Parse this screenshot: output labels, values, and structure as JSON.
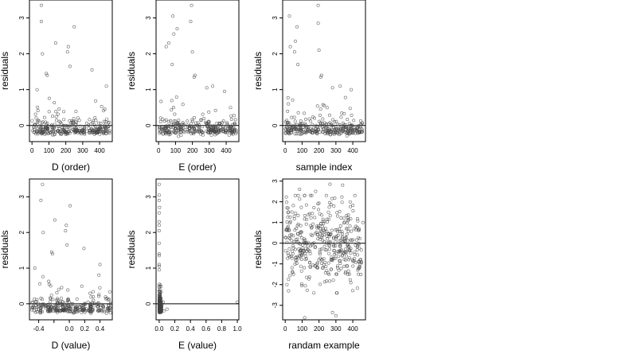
{
  "chart_data": [
    {
      "type": "scatter",
      "xlabel": "D (order)",
      "ylabel": "residuals",
      "xlim": [
        -15,
        475
      ],
      "ylim": [
        -0.45,
        3.5
      ],
      "xticks": [
        0,
        100,
        200,
        300,
        400
      ],
      "xtick_labels": [
        "0",
        "100",
        "200",
        "300",
        "400"
      ],
      "yticks": [
        0,
        1,
        2,
        3
      ],
      "ytick_labels": [
        "0",
        "1",
        "2",
        "3"
      ],
      "hline": 0,
      "highlight_points": [
        [
          55,
          3.35
        ],
        [
          55,
          2.9
        ],
        [
          140,
          2.3
        ],
        [
          250,
          2.75
        ],
        [
          215,
          2.2
        ],
        [
          210,
          2.05
        ],
        [
          62,
          2.0
        ],
        [
          225,
          1.65
        ],
        [
          85,
          1.45
        ],
        [
          90,
          1.4
        ],
        [
          355,
          1.55
        ],
        [
          440,
          1.1
        ],
        [
          30,
          1.0
        ]
      ],
      "residual_cloud": {
        "n": 300,
        "x_range": [
          0,
          460
        ],
        "center": -0.05,
        "spread": 0.28
      }
    },
    {
      "type": "scatter",
      "xlabel": "E (order)",
      "ylabel": "residuals",
      "xlim": [
        -15,
        475
      ],
      "ylim": [
        -0.45,
        3.5
      ],
      "xticks": [
        0,
        100,
        200,
        300,
        400
      ],
      "xtick_labels": [
        "0",
        "100",
        "200",
        "300",
        "400"
      ],
      "yticks": [
        0,
        1,
        2,
        3
      ],
      "ytick_labels": [
        "0",
        "1",
        "2",
        "3"
      ],
      "hline": 0,
      "highlight_points": [
        [
          195,
          3.35
        ],
        [
          85,
          3.05
        ],
        [
          190,
          2.9
        ],
        [
          110,
          2.7
        ],
        [
          90,
          2.55
        ],
        [
          60,
          2.3
        ],
        [
          45,
          2.2
        ],
        [
          200,
          2.05
        ],
        [
          80,
          1.7
        ],
        [
          215,
          1.4
        ],
        [
          210,
          1.35
        ],
        [
          320,
          1.1
        ],
        [
          285,
          1.05
        ],
        [
          390,
          0.95
        ]
      ],
      "residual_cloud": {
        "n": 300,
        "x_range": [
          0,
          460
        ],
        "center": -0.05,
        "spread": 0.28
      }
    },
    {
      "type": "scatter",
      "xlabel": "sample index",
      "ylabel": "residuals",
      "xlim": [
        -15,
        475
      ],
      "ylim": [
        -0.45,
        3.5
      ],
      "xticks": [
        0,
        100,
        200,
        300,
        400
      ],
      "xtick_labels": [
        "0",
        "100",
        "200",
        "300",
        "400"
      ],
      "yticks": [
        0,
        1,
        2,
        3
      ],
      "ytick_labels": [
        "0",
        "1",
        "2",
        "3"
      ],
      "hline": 0,
      "highlight_points": [
        [
          195,
          3.35
        ],
        [
          25,
          3.05
        ],
        [
          195,
          2.85
        ],
        [
          70,
          2.75
        ],
        [
          60,
          2.35
        ],
        [
          30,
          2.2
        ],
        [
          55,
          2.05
        ],
        [
          200,
          2.1
        ],
        [
          75,
          1.7
        ],
        [
          215,
          1.4
        ],
        [
          210,
          1.35
        ],
        [
          325,
          1.1
        ],
        [
          280,
          1.05
        ],
        [
          390,
          1.0
        ]
      ],
      "residual_cloud": {
        "n": 300,
        "x_range": [
          0,
          460
        ],
        "center": -0.05,
        "spread": 0.28
      }
    },
    {
      "type": "scatter",
      "xlabel": "D (value)",
      "ylabel": "residuals",
      "xlim": [
        -0.52,
        0.56
      ],
      "ylim": [
        -0.45,
        3.5
      ],
      "xticks": [
        -0.4,
        0.0,
        0.2,
        0.4
      ],
      "xtick_labels": [
        "-0.4",
        "0.0",
        "0.2",
        "0.4"
      ],
      "minor_xticks": [
        -0.2
      ],
      "yticks": [
        0,
        1,
        2,
        3
      ],
      "ytick_labels": [
        "0",
        "1",
        "2",
        "3"
      ],
      "hline": 0,
      "highlight_points": [
        [
          -0.35,
          3.35
        ],
        [
          -0.37,
          2.9
        ],
        [
          -0.19,
          2.35
        ],
        [
          0.01,
          2.75
        ],
        [
          -0.04,
          2.2
        ],
        [
          -0.05,
          2.05
        ],
        [
          -0.34,
          2.0
        ],
        [
          -0.03,
          1.65
        ],
        [
          -0.23,
          1.45
        ],
        [
          -0.22,
          1.4
        ],
        [
          0.19,
          1.55
        ],
        [
          0.4,
          1.1
        ],
        [
          -0.45,
          1.0
        ]
      ],
      "clusters": [
        -0.45,
        -0.36,
        -0.26,
        -0.16,
        -0.08,
        0.0,
        0.09,
        0.18,
        0.28,
        0.4,
        0.5
      ],
      "residual_cloud": {
        "n": 300,
        "center": -0.05,
        "spread": 0.28
      }
    },
    {
      "type": "scatter",
      "xlabel": "E (value)",
      "ylabel": "residuals",
      "xlim": [
        -0.04,
        1.02
      ],
      "ylim": [
        -0.45,
        3.5
      ],
      "xticks": [
        0.0,
        0.2,
        0.4,
        0.6,
        0.8,
        1.0
      ],
      "xtick_labels": [
        "0.0",
        "0.2",
        "0.4",
        "0.6",
        "0.8",
        "1.0"
      ],
      "yticks": [
        0,
        1,
        2,
        3
      ],
      "ytick_labels": [
        "0",
        "1",
        "2",
        "3"
      ],
      "hline": 0,
      "highlight_points": [
        [
          0.0,
          3.35
        ],
        [
          0.0,
          3.05
        ],
        [
          0.0,
          2.9
        ],
        [
          0.005,
          2.7
        ],
        [
          0.0,
          2.55
        ],
        [
          0.0,
          2.3
        ],
        [
          0.0,
          2.2
        ],
        [
          0.0,
          2.05
        ],
        [
          0.0,
          1.7
        ],
        [
          0.0,
          1.4
        ],
        [
          0.0,
          1.35
        ],
        [
          0.0,
          1.1
        ],
        [
          0.0,
          1.05
        ],
        [
          0.0,
          0.95
        ],
        [
          0.05,
          0.05
        ],
        [
          0.1,
          -0.15
        ],
        [
          0.06,
          -0.2
        ],
        [
          1.0,
          0.05
        ]
      ],
      "residual_cloud": {
        "n": 300,
        "x_range": [
          0.0,
          0.04
        ],
        "center": -0.05,
        "spread": 0.28
      }
    },
    {
      "type": "scatter",
      "xlabel": "randam example",
      "ylabel": "residuals",
      "xlim": [
        -15,
        475
      ],
      "ylim": [
        -3.7,
        3.1
      ],
      "xticks": [
        0,
        100,
        200,
        300,
        400
      ],
      "xtick_labels": [
        "0",
        "100",
        "200",
        "300",
        "400"
      ],
      "yticks": [
        -3,
        -2,
        -1,
        0,
        1,
        2,
        3
      ],
      "ytick_labels": [
        "-3",
        "-2",
        "-1",
        "0",
        "1",
        "2",
        "3"
      ],
      "hline": 0,
      "highlight_points": [
        [
          115,
          -3.6
        ],
        [
          300,
          -3.5
        ],
        [
          280,
          -3.35
        ],
        [
          265,
          2.85
        ],
        [
          340,
          2.8
        ],
        [
          85,
          2.6
        ],
        [
          180,
          2.5
        ],
        [
          20,
          -2.3
        ]
      ],
      "residual_cloud": {
        "n": 440,
        "x_range": [
          0,
          460
        ],
        "center": 0,
        "spread": 1.0
      }
    }
  ]
}
